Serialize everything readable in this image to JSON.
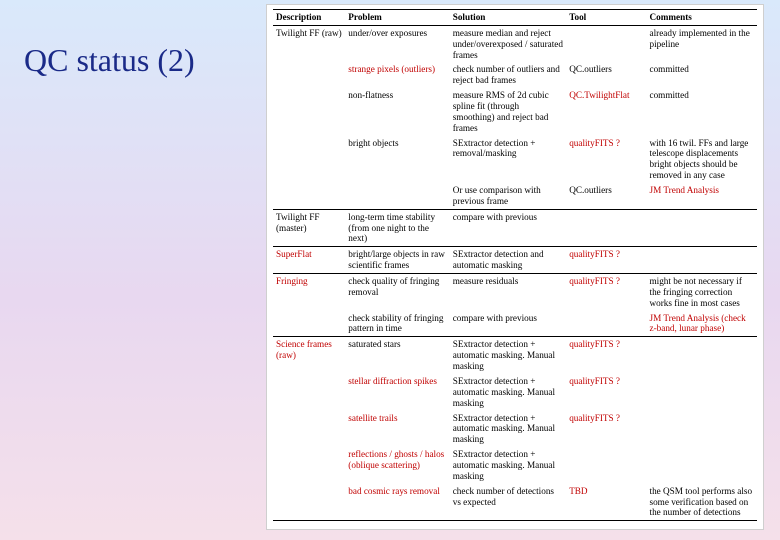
{
  "title": "QC status (2)",
  "table": {
    "headers": [
      "Description",
      "Problem",
      "Solution",
      "Tool",
      "Comments"
    ],
    "rows": [
      {
        "cells": [
          "Twilight FF (raw)",
          "under/over exposures",
          "measure median and reject under/overexposed / saturated frames",
          "",
          "already implemented in the pipeline"
        ],
        "red": [
          false,
          false,
          false,
          false,
          false
        ],
        "sep": false
      },
      {
        "cells": [
          "",
          "strange pixels (outliers)",
          "check number of outliers and reject bad frames",
          "QC.outliers",
          "committed"
        ],
        "red": [
          false,
          true,
          false,
          false,
          false
        ],
        "sep": false
      },
      {
        "cells": [
          "",
          "non-flatness",
          "measure RMS of 2d cubic spline fit (through smoothing) and reject bad frames",
          "QC.TwilightFlat",
          "committed"
        ],
        "red": [
          false,
          false,
          false,
          true,
          false
        ],
        "sep": false
      },
      {
        "cells": [
          "",
          "bright objects",
          "SExtractor detection + removal/masking",
          "qualityFITS ?",
          "with 16 twil. FFs and large telescope displacements bright objects should be removed in any case"
        ],
        "red": [
          false,
          false,
          false,
          true,
          false
        ],
        "sep": false
      },
      {
        "cells": [
          "",
          "",
          "Or use comparison with previous frame",
          "QC.outliers",
          "JM Trend Analysis"
        ],
        "red": [
          false,
          false,
          false,
          false,
          true
        ],
        "sep": true
      },
      {
        "cells": [
          "Twilight FF (master)",
          "long-term time stability (from one night to the next)",
          "compare with previous",
          "",
          ""
        ],
        "red": [
          false,
          false,
          false,
          false,
          false
        ],
        "sep": true
      },
      {
        "cells": [
          "SuperFlat",
          "bright/large objects in raw scientific frames",
          "SExtractor detection and automatic masking",
          "qualityFITS ?",
          ""
        ],
        "red": [
          true,
          false,
          false,
          true,
          false
        ],
        "sep": true
      },
      {
        "cells": [
          "Fringing",
          "check quality of fringing removal",
          "measure residuals",
          "qualityFITS ?",
          "might be not necessary if the fringing correction works fine in most cases"
        ],
        "red": [
          true,
          false,
          false,
          true,
          false
        ],
        "sep": false
      },
      {
        "cells": [
          "",
          "check stability of fringing pattern in time",
          "compare with previous",
          "",
          "JM Trend Analysis (check z-band, lunar phase)"
        ],
        "red": [
          false,
          false,
          false,
          false,
          true
        ],
        "sep": true
      },
      {
        "cells": [
          "Science frames (raw)",
          "saturated stars",
          "SExtractor detection + automatic masking. Manual masking",
          "qualityFITS ?",
          ""
        ],
        "red": [
          true,
          false,
          false,
          true,
          false
        ],
        "sep": false
      },
      {
        "cells": [
          "",
          "stellar diffraction spikes",
          "SExtractor detection + automatic masking. Manual masking",
          "qualityFITS ?",
          ""
        ],
        "red": [
          false,
          true,
          false,
          true,
          false
        ],
        "sep": false
      },
      {
        "cells": [
          "",
          "satellite trails",
          "SExtractor detection + automatic masking. Manual masking",
          "qualityFITS ?",
          ""
        ],
        "red": [
          false,
          true,
          false,
          true,
          false
        ],
        "sep": false
      },
      {
        "cells": [
          "",
          "reflections / ghosts / halos (oblique scattering)",
          "SExtractor detection + automatic masking. Manual masking",
          "",
          ""
        ],
        "red": [
          false,
          true,
          false,
          false,
          false
        ],
        "sep": false
      },
      {
        "cells": [
          "",
          "bad cosmic rays removal",
          "check number of detections vs expected",
          "TBD",
          "the QSM tool performs also some verification based on the number of detections"
        ],
        "red": [
          false,
          true,
          false,
          true,
          false
        ],
        "sep": false,
        "last": true
      }
    ]
  }
}
